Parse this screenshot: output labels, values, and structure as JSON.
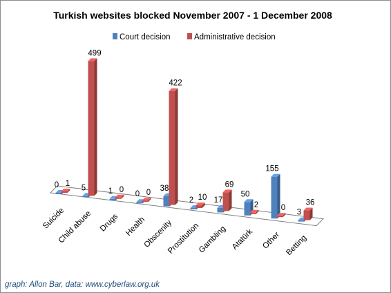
{
  "chart_data": {
    "type": "bar",
    "title": "Turkish websites  blocked November 2007 - 1 December 2008",
    "categories": [
      "Suicide",
      "Child abuse",
      "Drugs",
      "Health",
      "Obscenity",
      "Prostitution",
      "Gambling",
      "Atatürk",
      "Other",
      "Betting"
    ],
    "series": [
      {
        "name": "Court decision",
        "values": [
          0,
          5,
          1,
          0,
          38,
          2,
          17,
          50,
          155,
          3
        ]
      },
      {
        "name": "Administrative decision",
        "values": [
          1,
          499,
          0,
          0,
          422,
          10,
          69,
          2,
          0,
          36
        ]
      }
    ],
    "ylim": [
      0,
      499
    ],
    "grid": false,
    "legend_position": "top-right"
  },
  "colors": {
    "court": "#4f81bd",
    "administrative": "#c0504d",
    "floor": "#ffffff"
  },
  "credit": "graph: Allon Bar, data: www.cyberlaw.org.uk"
}
